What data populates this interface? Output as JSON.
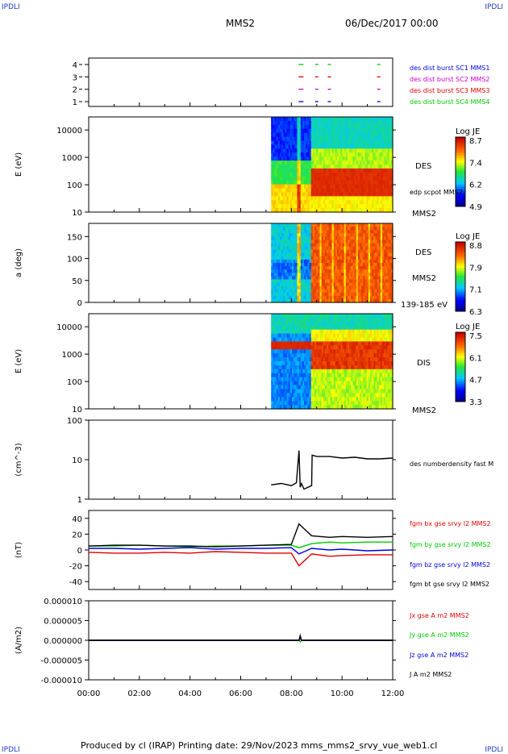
{
  "header": {
    "corner_left": "IPDLI",
    "corner_right": "IPDLI",
    "spacecraft": "MMS2",
    "datetime": "06/Dec/2017 00:00"
  },
  "footer": {
    "text": "Produced by cl (IRAP)   Printing date: 29/Nov/2023   mms_mms2_srvy_vue_web1.cl",
    "corner_left": "IPDLI",
    "corner_right": "IPDLI"
  },
  "colors": {
    "black": "#000000",
    "red": "#e00000",
    "green": "#00cc00",
    "blue": "#0000e0",
    "magenta": "#cc00cc"
  },
  "chart_data": [
    {
      "type": "scatter",
      "panel": "availability",
      "yticks": [
        "1",
        "2",
        "3",
        "4"
      ],
      "xrange_hours": [
        0,
        12
      ],
      "legend": [
        {
          "label": "des dist burst SC1 MMS1",
          "color": "#0000e0"
        },
        {
          "label": "des dist burst SC2 MMS2",
          "color": "#cc00cc"
        },
        {
          "label": "des dist burst SC3 MMS3",
          "color": "#e00000"
        },
        {
          "label": "des dist burst SC4 MMS4",
          "color": "#00cc00"
        }
      ],
      "burst_times_hours": [
        8.35,
        9.0,
        9.5,
        11.45
      ]
    },
    {
      "type": "heatmap",
      "panel": "des-energy",
      "ylabel": "E (eV)",
      "yscale": "log",
      "ylim": [
        10,
        30000
      ],
      "yticks": [
        "10",
        "100",
        "1000",
        "10000"
      ],
      "right_labels": [
        "DES",
        "edp scpot MMS2",
        "MMS2"
      ],
      "colorbar": {
        "title": "Log JE",
        "ticks": [
          "8.7",
          "7.4",
          "6.2",
          "4.9"
        ]
      },
      "data_start_hours": 7.2
    },
    {
      "type": "heatmap",
      "panel": "des-pitch",
      "ylabel": "a (deg)",
      "ylim": [
        0,
        180
      ],
      "yticks": [
        "0",
        "50",
        "100",
        "150"
      ],
      "right_labels": [
        "DES",
        "MMS2",
        "139-185 eV"
      ],
      "colorbar": {
        "title": "Log JE",
        "ticks": [
          "8.8",
          "7.9",
          "7.1",
          "6.3"
        ]
      },
      "data_start_hours": 7.2
    },
    {
      "type": "heatmap",
      "panel": "dis-energy",
      "ylabel": "E (eV)",
      "yscale": "log",
      "ylim": [
        10,
        30000
      ],
      "yticks": [
        "10",
        "100",
        "1000",
        "10000"
      ],
      "right_labels": [
        "DIS",
        "MMS2"
      ],
      "colorbar": {
        "title": "Log JE",
        "ticks": [
          "7.5",
          "6.1",
          "4.7",
          "3.3"
        ]
      },
      "data_start_hours": 7.2
    },
    {
      "type": "line",
      "panel": "density",
      "ylabel": "(cm^-3)",
      "yscale": "log",
      "ylim": [
        1,
        100
      ],
      "yticks": [
        "1",
        "10",
        "100"
      ],
      "series": [
        {
          "name": "des numberdensity fast M",
          "color": "#000000",
          "x": [
            7.2,
            7.6,
            8.0,
            8.2,
            8.3,
            8.35,
            8.4,
            8.5,
            8.8,
            8.82,
            9.0,
            9.5,
            10.0,
            10.5,
            11.0,
            11.5,
            12.0
          ],
          "y": [
            2.3,
            2.5,
            2.2,
            2.6,
            17.0,
            2.0,
            2.5,
            1.8,
            2.2,
            13.0,
            12.0,
            12.0,
            11.0,
            11.5,
            10.5,
            10.5,
            11.0
          ]
        }
      ]
    },
    {
      "type": "line",
      "panel": "magnetic-field",
      "ylabel": "(nT)",
      "ylim": [
        -50,
        50
      ],
      "yticks": [
        "-40",
        "-20",
        "0",
        "20",
        "40"
      ],
      "series": [
        {
          "name": "fgm bx gse srvy l2 MMS2",
          "color": "#e00000",
          "x": [
            0,
            1,
            2,
            3,
            4,
            5,
            6,
            7,
            8,
            8.3,
            8.8,
            9.5,
            10,
            11,
            12
          ],
          "y": [
            -3,
            -4,
            -4,
            -3,
            -4,
            -2,
            -3,
            -4,
            -4,
            -20,
            -5,
            -8,
            -7,
            -6,
            -6
          ]
        },
        {
          "name": "fgm by gse srvy l2 MMS2",
          "color": "#00cc00",
          "x": [
            0,
            1,
            2,
            3,
            4,
            5,
            6,
            7,
            8,
            8.3,
            8.8,
            9.5,
            10,
            11,
            12
          ],
          "y": [
            5,
            5,
            6,
            5,
            4,
            5,
            5,
            6,
            6,
            3,
            8,
            10,
            9,
            10,
            10
          ]
        },
        {
          "name": "fgm bz gse srvy l2 MMS2",
          "color": "#0000e0",
          "x": [
            0,
            1,
            2,
            3,
            4,
            5,
            6,
            7,
            8,
            8.3,
            8.8,
            9.5,
            10,
            11,
            12
          ],
          "y": [
            2,
            2,
            1,
            2,
            3,
            1,
            2,
            2,
            3,
            -5,
            2,
            0,
            1,
            -1,
            0
          ]
        },
        {
          "name": "fgm bt gse srvy l2 MMS2",
          "color": "#000000",
          "x": [
            0,
            1,
            2,
            3,
            4,
            5,
            6,
            7,
            8,
            8.3,
            8.8,
            9.5,
            10,
            11,
            12
          ],
          "y": [
            5,
            6,
            6,
            5,
            5,
            4,
            5,
            6,
            7,
            33,
            18,
            16,
            17,
            16,
            17
          ]
        }
      ]
    },
    {
      "type": "line",
      "panel": "current-density",
      "ylabel": "(A/m2)",
      "ylim": [
        -1e-05,
        1e-05
      ],
      "yticks": [
        "-0.000010",
        "-0.000005",
        "0.000000",
        "0.000005",
        "0.000010"
      ],
      "series": [
        {
          "name": "Jx gse A m2 MMS2",
          "color": "#e00000",
          "x": [
            0,
            8.3,
            8.35,
            8.4,
            12
          ],
          "y": [
            0,
            0,
            6e-07,
            0,
            0
          ]
        },
        {
          "name": "Jy gse A m2 MMS2",
          "color": "#00cc00",
          "x": [
            0,
            8.3,
            8.35,
            8.4,
            12
          ],
          "y": [
            0,
            0,
            -4e-07,
            0,
            0
          ]
        },
        {
          "name": "Jz gse A m2 MMS2",
          "color": "#0000e0",
          "x": [
            0,
            8.3,
            8.35,
            8.4,
            12
          ],
          "y": [
            0,
            0,
            8e-07,
            0,
            0
          ]
        },
        {
          "name": "J A m2 MMS2",
          "color": "#000000",
          "x": [
            0,
            8.3,
            8.35,
            8.4,
            12
          ],
          "y": [
            0,
            0,
            1.2e-06,
            0,
            0
          ]
        }
      ]
    }
  ],
  "x_axis": {
    "ticks": [
      "00:00",
      "02:00",
      "04:00",
      "06:00",
      "08:00",
      "10:00",
      "12:00"
    ],
    "range_hours": [
      0,
      12
    ]
  }
}
